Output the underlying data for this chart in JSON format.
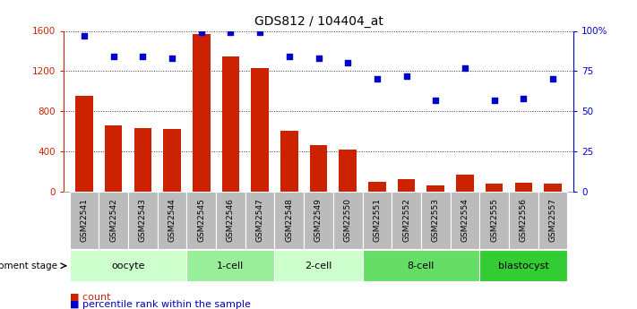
{
  "title": "GDS812 / 104404_at",
  "samples": [
    "GSM22541",
    "GSM22542",
    "GSM22543",
    "GSM22544",
    "GSM22545",
    "GSM22546",
    "GSM22547",
    "GSM22548",
    "GSM22549",
    "GSM22550",
    "GSM22551",
    "GSM22552",
    "GSM22553",
    "GSM22554",
    "GSM22555",
    "GSM22556",
    "GSM22557"
  ],
  "counts": [
    950,
    660,
    630,
    620,
    1570,
    1350,
    1230,
    610,
    460,
    415,
    100,
    120,
    65,
    170,
    80,
    90,
    75
  ],
  "percentiles": [
    97,
    84,
    84,
    83,
    99,
    99,
    99,
    84,
    83,
    80,
    70,
    72,
    57,
    77,
    57,
    58,
    70
  ],
  "bar_color": "#cc2200",
  "dot_color": "#0000cc",
  "ylim_left": [
    0,
    1600
  ],
  "ylim_right": [
    0,
    100
  ],
  "yticks_left": [
    0,
    400,
    800,
    1200,
    1600
  ],
  "yticks_right": [
    0,
    25,
    50,
    75,
    100
  ],
  "ytick_labels_right": [
    "0",
    "25",
    "50",
    "75",
    "100%"
  ],
  "ytick_labels_left": [
    "0",
    "400",
    "800",
    "1200",
    "1600"
  ],
  "stages": [
    {
      "label": "oocyte",
      "start": 0,
      "end": 4,
      "color": "#ccffcc"
    },
    {
      "label": "1-cell",
      "start": 4,
      "end": 7,
      "color": "#99ee99"
    },
    {
      "label": "2-cell",
      "start": 7,
      "end": 10,
      "color": "#ccffcc"
    },
    {
      "label": "8-cell",
      "start": 10,
      "end": 14,
      "color": "#66dd66"
    },
    {
      "label": "blastocyst",
      "start": 14,
      "end": 17,
      "color": "#33cc33"
    }
  ],
  "dev_stage_label": "development stage",
  "legend_count_label": "count",
  "legend_pct_label": "percentile rank within the sample",
  "bg_color": "#ffffff",
  "tick_label_bg": "#bbbbbb",
  "grid_color": "#000000",
  "title_fontsize": 10,
  "tick_fontsize": 7.5,
  "stage_fontsize": 8,
  "sample_fontsize": 6.5
}
